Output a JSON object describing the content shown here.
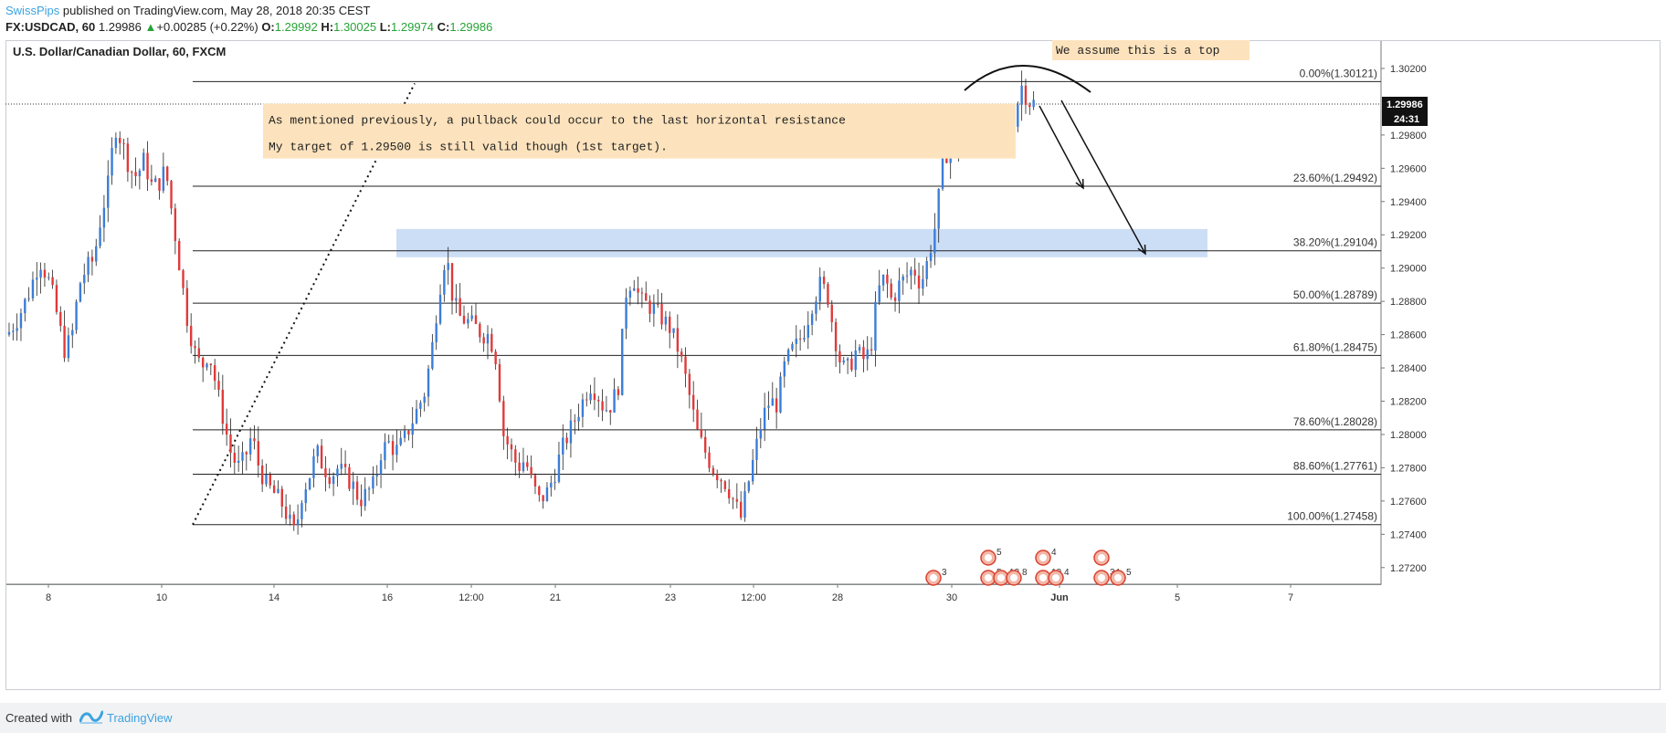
{
  "header": {
    "author": "SwissPips",
    "published": "published on TradingView.com, May 28, 2018 20:35 CEST",
    "symbol": "FX:USDCAD, 60",
    "last": "1.29986",
    "arrow": "▲",
    "change": "+0.00285 (+0.22%)",
    "o_label": "O:",
    "o_value": "1.29992",
    "h_label": "H:",
    "h_value": "1.30025",
    "l_label": "L:",
    "l_value": "1.29974",
    "c_label": "C:",
    "c_value": "1.29986"
  },
  "footer": {
    "created_with": "Created with",
    "brand": "TradingView"
  },
  "colors": {
    "up": "#3b7dd8",
    "down": "#e03a3a",
    "fib_line": "#222222",
    "zone": "#c7d9f5",
    "note_bg": "#fde3bd",
    "price_tag": "#111111"
  },
  "chart_data": {
    "type": "candlestick",
    "title": "U.S. Dollar/Canadian Dollar, 60, FXCM",
    "ylim": [
      1.271,
      1.3037
    ],
    "y_ticks": [
      "1.30200",
      "1.29800",
      "1.29600",
      "1.29400",
      "1.29200",
      "1.29000",
      "1.28800",
      "1.28600",
      "1.28400",
      "1.28200",
      "1.28000",
      "1.27800",
      "1.27600",
      "1.27400",
      "1.27200"
    ],
    "x_ticks": [
      "8",
      "10",
      "14",
      "16",
      "12:00",
      "21",
      "23",
      "12:00",
      "28",
      "30",
      "Jun",
      "5",
      "7"
    ],
    "current_price": "1.29986",
    "countdown": "24:31",
    "fib_levels": [
      {
        "label": "0.00%(1.30121)",
        "value": 1.30121
      },
      {
        "label": "23.60%(1.29492)",
        "value": 1.29492
      },
      {
        "label": "38.20%(1.29104)",
        "value": 1.29104
      },
      {
        "label": "50.00%(1.28789)",
        "value": 1.28789
      },
      {
        "label": "61.80%(1.28475)",
        "value": 1.28475
      },
      {
        "label": "78.60%(1.28028)",
        "value": 1.28028
      },
      {
        "label": "88.60%(1.27761)",
        "value": 1.27761
      },
      {
        "label": "100.00%(1.27458)",
        "value": 1.27458
      }
    ],
    "resistance_zone": [
      1.29065,
      1.29235
    ],
    "annotations": {
      "note_line1": "As mentioned previously, a pullback could occur to the last horizontal resistance",
      "note_line2": "My target of 1.29500 is still valid though (1st target).",
      "top_note": "We assume this is a top"
    },
    "events": {
      "group1": [
        "3"
      ],
      "group2": [
        "5",
        "5",
        "12",
        "8"
      ],
      "group3": [
        "4",
        "10",
        "4"
      ],
      "group4": [
        "34",
        "5"
      ]
    },
    "price_path": [
      [
        0,
        1.286
      ],
      [
        3,
        1.287
      ],
      [
        6,
        1.2885
      ],
      [
        9,
        1.2905
      ],
      [
        12,
        1.289
      ],
      [
        14,
        1.287
      ],
      [
        16,
        1.285
      ],
      [
        18,
        1.286
      ],
      [
        20,
        1.289
      ],
      [
        22,
        1.29
      ],
      [
        24,
        1.2905
      ],
      [
        26,
        1.293
      ],
      [
        28,
        1.295
      ],
      [
        30,
        1.2985
      ],
      [
        32,
        1.2975
      ],
      [
        34,
        1.296
      ],
      [
        36,
        1.2955
      ],
      [
        38,
        1.2965
      ],
      [
        40,
        1.295
      ],
      [
        42,
        1.295
      ],
      [
        44,
        1.296
      ],
      [
        46,
        1.293
      ],
      [
        48,
        1.29
      ],
      [
        50,
        1.287
      ],
      [
        52,
        1.285
      ],
      [
        54,
        1.284
      ],
      [
        56,
        1.285
      ],
      [
        58,
        1.283
      ],
      [
        60,
        1.281
      ],
      [
        62,
        1.279
      ],
      [
        64,
        1.278
      ],
      [
        66,
        1.2785
      ],
      [
        68,
        1.28
      ],
      [
        70,
        1.278
      ],
      [
        72,
        1.277
      ],
      [
        74,
        1.2765
      ],
      [
        76,
        1.276
      ],
      [
        78,
        1.275
      ],
      [
        80,
        1.274
      ],
      [
        82,
        1.2765
      ],
      [
        84,
        1.2775
      ],
      [
        86,
        1.279
      ],
      [
        88,
        1.278
      ],
      [
        90,
        1.2775
      ],
      [
        92,
        1.278
      ],
      [
        94,
        1.2775
      ],
      [
        96,
        1.277
      ],
      [
        98,
        1.276
      ],
      [
        100,
        1.2765
      ],
      [
        102,
        1.277
      ],
      [
        104,
        1.279
      ],
      [
        106,
        1.2795
      ],
      [
        108,
        1.279
      ],
      [
        110,
        1.2795
      ],
      [
        112,
        1.2805
      ],
      [
        114,
        1.2815
      ],
      [
        116,
        1.2825
      ],
      [
        118,
        1.285
      ],
      [
        120,
        1.2885
      ],
      [
        122,
        1.291
      ],
      [
        124,
        1.288
      ],
      [
        126,
        1.287
      ],
      [
        128,
        1.2868
      ],
      [
        130,
        1.2865
      ],
      [
        132,
        1.286
      ],
      [
        134,
        1.286
      ],
      [
        136,
        1.2845
      ],
      [
        138,
        1.28
      ],
      [
        140,
        1.279
      ],
      [
        142,
        1.278
      ],
      [
        144,
        1.2785
      ],
      [
        146,
        1.277
      ],
      [
        148,
        1.276
      ],
      [
        150,
        1.2765
      ],
      [
        152,
        1.2775
      ],
      [
        154,
        1.279
      ],
      [
        156,
        1.28
      ],
      [
        158,
        1.281
      ],
      [
        160,
        1.282
      ],
      [
        162,
        1.283
      ],
      [
        164,
        1.2825
      ],
      [
        166,
        1.2815
      ],
      [
        168,
        1.2818
      ],
      [
        170,
        1.283
      ],
      [
        172,
        1.2885
      ],
      [
        174,
        1.2895
      ],
      [
        176,
        1.288
      ],
      [
        178,
        1.2878
      ],
      [
        180,
        1.2875
      ],
      [
        182,
        1.287
      ],
      [
        184,
        1.2865
      ],
      [
        186,
        1.2855
      ],
      [
        188,
        1.284
      ],
      [
        190,
        1.282
      ],
      [
        192,
        1.28
      ],
      [
        194,
        1.279
      ],
      [
        196,
        1.278
      ],
      [
        198,
        1.2775
      ],
      [
        200,
        1.277
      ],
      [
        202,
        1.276
      ],
      [
        204,
        1.275
      ],
      [
        206,
        1.277
      ],
      [
        208,
        1.279
      ],
      [
        210,
        1.281
      ],
      [
        212,
        1.282
      ],
      [
        214,
        1.2818
      ],
      [
        216,
        1.284
      ],
      [
        218,
        1.285
      ],
      [
        220,
        1.2855
      ],
      [
        222,
        1.2865
      ],
      [
        224,
        1.288
      ],
      [
        226,
        1.289
      ],
      [
        228,
        1.2885
      ],
      [
        230,
        1.286
      ],
      [
        232,
        1.284
      ],
      [
        234,
        1.284
      ],
      [
        236,
        1.285
      ],
      [
        238,
        1.2845
      ],
      [
        240,
        1.285
      ],
      [
        242,
        1.2885
      ],
      [
        244,
        1.2895
      ],
      [
        246,
        1.288
      ],
      [
        248,
        1.289
      ],
      [
        250,
        1.2895
      ],
      [
        252,
        1.29
      ],
      [
        254,
        1.289
      ],
      [
        256,
        1.2905
      ],
      [
        258,
        1.2925
      ],
      [
        260,
        1.296
      ],
      [
        262,
        1.2975
      ],
      [
        264,
        1.297
      ],
      [
        266,
        1.2978
      ],
      [
        268,
        1.2975
      ],
      [
        270,
        1.2982
      ],
      [
        272,
        1.298
      ],
      [
        274,
        1.2975
      ],
      [
        276,
        1.2985
      ],
      [
        278,
        1.2985
      ],
      [
        280,
        1.299
      ],
      [
        282,
        1.301
      ],
      [
        284,
        1.3
      ],
      [
        286,
        1.2999
      ]
    ]
  }
}
